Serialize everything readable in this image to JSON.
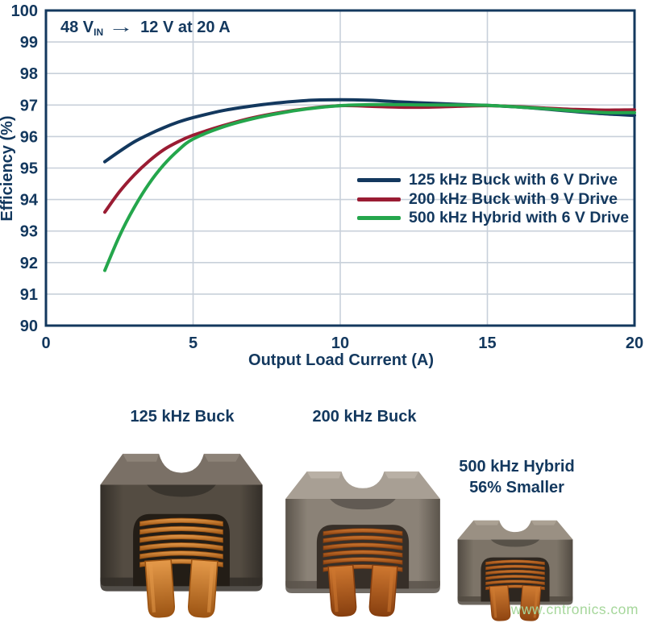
{
  "chart": {
    "annotation": {
      "prefix": "48 V",
      "subscript": "IN",
      "arrow": "→",
      "suffix": "12 V at 20 A"
    },
    "navy": "#13385E",
    "grid_color": "#C8D0DA",
    "background": "#FFFFFF"
  },
  "chart_data": {
    "type": "line",
    "title": "48 V IN → 12 V at 20 A",
    "xlabel": "Output Load Current (A)",
    "ylabel": "Efficiency (%)",
    "xlim": [
      0,
      20
    ],
    "ylim": [
      90,
      100
    ],
    "x_ticks": [
      0,
      5,
      10,
      15,
      20
    ],
    "y_ticks": [
      90,
      91,
      92,
      93,
      94,
      95,
      96,
      97,
      98,
      99,
      100
    ],
    "x_gridlines": [
      5,
      10,
      15
    ],
    "y_gridlines": [
      91,
      92,
      93,
      94,
      95,
      96,
      97,
      98,
      99
    ],
    "grid": true,
    "legend_position": "inside lower right",
    "series": [
      {
        "id": "buck-125khz",
        "name": "125 kHz Buck with 6 V Drive",
        "color": "#13385E",
        "points": [
          [
            2,
            95.2
          ],
          [
            2.5,
            95.53
          ],
          [
            3,
            95.83
          ],
          [
            3.5,
            96.07
          ],
          [
            4,
            96.28
          ],
          [
            4.5,
            96.46
          ],
          [
            5,
            96.6
          ],
          [
            6,
            96.82
          ],
          [
            7,
            96.97
          ],
          [
            8,
            97.08
          ],
          [
            9,
            97.15
          ],
          [
            10,
            97.17
          ],
          [
            11,
            97.15
          ],
          [
            12,
            97.1
          ],
          [
            13,
            97.06
          ],
          [
            14,
            97.02
          ],
          [
            15,
            96.99
          ],
          [
            16,
            96.94
          ],
          [
            17,
            96.87
          ],
          [
            18,
            96.79
          ],
          [
            19,
            96.72
          ],
          [
            20,
            96.67
          ]
        ]
      },
      {
        "id": "buck-200khz",
        "name": "200 kHz Buck with 9 V Drive",
        "color": "#9A1C33",
        "points": [
          [
            2,
            93.6
          ],
          [
            2.5,
            94.25
          ],
          [
            3,
            94.78
          ],
          [
            3.5,
            95.22
          ],
          [
            4,
            95.58
          ],
          [
            4.5,
            95.84
          ],
          [
            5,
            96.04
          ],
          [
            6,
            96.34
          ],
          [
            7,
            96.59
          ],
          [
            8,
            96.77
          ],
          [
            9,
            96.9
          ],
          [
            10,
            96.98
          ],
          [
            11,
            96.96
          ],
          [
            12,
            96.93
          ],
          [
            13,
            96.93
          ],
          [
            14,
            96.96
          ],
          [
            15,
            96.98
          ],
          [
            16,
            96.95
          ],
          [
            17,
            96.9
          ],
          [
            18,
            96.86
          ],
          [
            19,
            96.84
          ],
          [
            20,
            96.85
          ]
        ]
      },
      {
        "id": "hybrid-500khz",
        "name": "500 kHz Hybrid with 6 V Drive",
        "color": "#24A64C",
        "points": [
          [
            2,
            91.75
          ],
          [
            2.5,
            92.85
          ],
          [
            3,
            93.75
          ],
          [
            3.5,
            94.5
          ],
          [
            4,
            95.1
          ],
          [
            4.5,
            95.57
          ],
          [
            5,
            95.92
          ],
          [
            6,
            96.3
          ],
          [
            7,
            96.56
          ],
          [
            8,
            96.75
          ],
          [
            9,
            96.89
          ],
          [
            10,
            96.98
          ],
          [
            11,
            97.01
          ],
          [
            12,
            97.01
          ],
          [
            13,
            97.0
          ],
          [
            14,
            97.0
          ],
          [
            15,
            96.99
          ],
          [
            16,
            96.94
          ],
          [
            17,
            96.88
          ],
          [
            18,
            96.81
          ],
          [
            19,
            96.76
          ],
          [
            20,
            96.76
          ]
        ]
      }
    ]
  },
  "photo": {
    "captions": {
      "left": "125 kHz Buck",
      "middle": "200 kHz Buck",
      "right_line1": "500 kHz Hybrid",
      "right_line2": "56% Smaller"
    },
    "watermark": {
      "text": "www.cntronics.com",
      "color": "#A6D79B"
    },
    "inductors": [
      {
        "id": "inductor-125khz-buck",
        "core_top": "#7A7066",
        "core_top_hi": "#998F83",
        "core_front": "#544C42",
        "core_dark": "#332E28",
        "cavity": "#231D16",
        "copper_light": "#E59A4A",
        "copper_dark": "#9C5413"
      },
      {
        "id": "inductor-200khz-buck",
        "core_top": "#A89F94",
        "core_top_hi": "#C4BCB1",
        "core_front": "#8B8277",
        "core_dark": "#5B544B",
        "cavity": "#372F28",
        "copper_light": "#CF7830",
        "copper_dark": "#873F0F"
      },
      {
        "id": "inductor-500khz-hybrid",
        "core_top": "#9A9083",
        "core_top_hi": "#B7AD9F",
        "core_front": "#7D7468",
        "core_dark": "#524B42",
        "cavity": "#2E2720",
        "copper_light": "#D07C32",
        "copper_dark": "#8F4511"
      }
    ]
  }
}
